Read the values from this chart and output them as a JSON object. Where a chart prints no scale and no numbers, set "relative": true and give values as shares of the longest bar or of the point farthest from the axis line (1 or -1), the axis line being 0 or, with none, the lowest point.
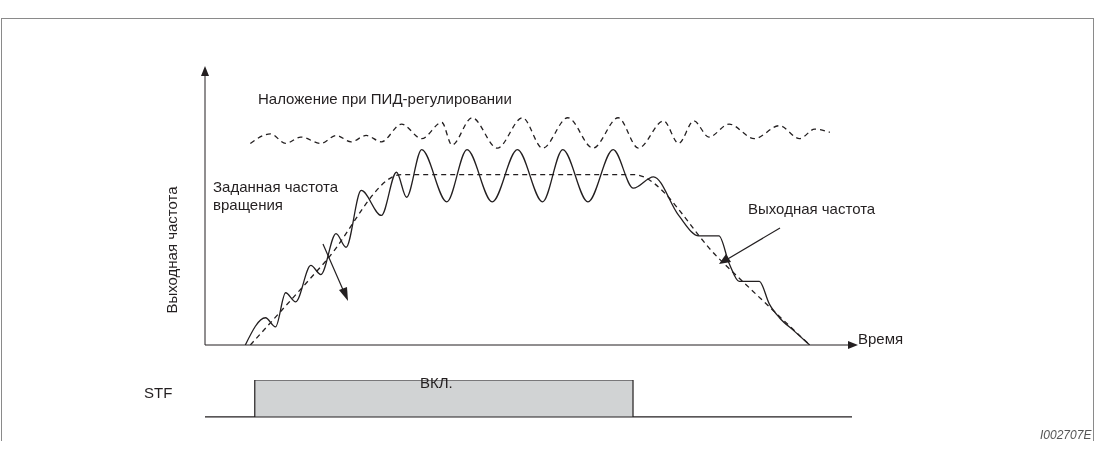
{
  "chart_data": [
    {
      "type": "line",
      "relative": true,
      "marker": "none",
      "xlabel": "Время",
      "ylabel": "Выходная частота",
      "categories": [
        null,
        null,
        null,
        null,
        null,
        null,
        null,
        null,
        null,
        null,
        null,
        null,
        null,
        null,
        null,
        null,
        null,
        null,
        null,
        null,
        null,
        null,
        null,
        null,
        null,
        null,
        null,
        null,
        null,
        null,
        null,
        null,
        null,
        null,
        null,
        null,
        null,
        null,
        null,
        null,
        null,
        null,
        null,
        null,
        null,
        null,
        null,
        null,
        null,
        null,
        null,
        null,
        null,
        null,
        null,
        null,
        null,
        null,
        null,
        null,
        null,
        null,
        null,
        null,
        null,
        null,
        null,
        null,
        null,
        null,
        null,
        null,
        null,
        null,
        null,
        null,
        null,
        null,
        null,
        null,
        null,
        null,
        null,
        null,
        null,
        null,
        null,
        null,
        null,
        null,
        null,
        null,
        null,
        null,
        null,
        null,
        null,
        null,
        null,
        null,
        null,
        null,
        null,
        null,
        null,
        null,
        null,
        null,
        null,
        null,
        null,
        null,
        null,
        null,
        null,
        null,
        null,
        null,
        null,
        null,
        null,
        null,
        null,
        null,
        null,
        null,
        null,
        null,
        null
      ],
      "series": [
        {
          "name": "Наложение при ПИД-регулировании",
          "color": "#231f20",
          "line_style": "dashed",
          "values": [
            null,
            null,
            null,
            null,
            null,
            null,
            null,
            null,
            null,
            0.887,
            null,
            null,
            null,
            0.929,
            null,
            null,
            0.887,
            null,
            null,
            0.915,
            null,
            null,
            null,
            0.887,
            null,
            null,
            0.922,
            null,
            null,
            0.894,
            null,
            null,
            0.922,
            null,
            null,
            0.894,
            null,
            null,
            null,
            0.972,
            null,
            null,
            null,
            0.908,
            null,
            null,
            null,
            0.979,
            null,
            0.88,
            null,
            null,
            null,
            1,
            null,
            null,
            null,
            null,
            0.866,
            null,
            null,
            null,
            null,
            1,
            null,
            null,
            null,
            0.866,
            null,
            null,
            null,
            null,
            1,
            null,
            null,
            null,
            null,
            0.866,
            null,
            null,
            null,
            null,
            1,
            null,
            null,
            null,
            0.866,
            null,
            null,
            null,
            null,
            0.986,
            null,
            null,
            0.887,
            null,
            null,
            0.986,
            null,
            null,
            0.915,
            null,
            null,
            null,
            0.972,
            null,
            null,
            null,
            null,
            0.908,
            null,
            null,
            null,
            null,
            0.965,
            null,
            null,
            null,
            0.908,
            null,
            null,
            0.95,
            null,
            null,
            0.936,
            null,
            null,
            null,
            null
          ]
        },
        {
          "name": "Заданная частота вращения",
          "color": "#231f20",
          "line_style": "dashed",
          "values": [
            null,
            null,
            null,
            null,
            null,
            null,
            null,
            null,
            null,
            0,
            null,
            null,
            null,
            null,
            null,
            null,
            null,
            null,
            null,
            null,
            null,
            null,
            null,
            null,
            0.37,
            null,
            null,
            null,
            null,
            null,
            null,
            null,
            null,
            null,
            null,
            null,
            null,
            null,
            null,
            0.75,
            null,
            null,
            null,
            null,
            null,
            null,
            null,
            null,
            null,
            null,
            null,
            null,
            null,
            null,
            null,
            null,
            null,
            null,
            null,
            null,
            null,
            null,
            null,
            null,
            null,
            null,
            null,
            null,
            null,
            null,
            null,
            null,
            null,
            null,
            null,
            null,
            null,
            null,
            null,
            null,
            null,
            null,
            null,
            null,
            null,
            0.75,
            null,
            null,
            null,
            null,
            null,
            null,
            null,
            null,
            null,
            null,
            null,
            null,
            null,
            null,
            null,
            null,
            0.38,
            null,
            null,
            null,
            null,
            null,
            null,
            null,
            null,
            null,
            null,
            null,
            null,
            null,
            null,
            null,
            null,
            null,
            0,
            null,
            null,
            null,
            null,
            null,
            null,
            null,
            null
          ]
        },
        {
          "name": "Выходная частота",
          "color": "#231f20",
          "line_style": "solid",
          "values": [
            null,
            null,
            null,
            null,
            null,
            null,
            null,
            null,
            0,
            null,
            null,
            null,
            0.12,
            null,
            0.08,
            null,
            0.23,
            null,
            0.19,
            null,
            null,
            0.35,
            null,
            0.31,
            null,
            null,
            0.49,
            null,
            0.43,
            null,
            null,
            0.68,
            null,
            null,
            null,
            0.57,
            null,
            null,
            0.76,
            null,
            0.65,
            null,
            null,
            0.86,
            null,
            null,
            null,
            null,
            0.63,
            null,
            null,
            null,
            0.86,
            null,
            null,
            null,
            null,
            0.63,
            null,
            null,
            null,
            null,
            0.86,
            null,
            null,
            null,
            null,
            0.63,
            null,
            null,
            null,
            0.86,
            null,
            null,
            null,
            null,
            0.63,
            null,
            null,
            null,
            null,
            0.86,
            null,
            null,
            null,
            0.69,
            null,
            null,
            null,
            0.74,
            null,
            null,
            null,
            null,
            0.57,
            null,
            null,
            null,
            0.48,
            null,
            null,
            null,
            0.48,
            null,
            0.36,
            null,
            0.28,
            null,
            null,
            null,
            0.28,
            null,
            0.18,
            null,
            0.12,
            null,
            null,
            0.06,
            null,
            null,
            0,
            null,
            null,
            null,
            null,
            null,
            null,
            null,
            null
          ]
        }
      ]
    },
    {
      "type": "area",
      "relative": true,
      "marker": "none",
      "annotations": [
        "ВКЛ.",
        "I002707E"
      ],
      "categories": [
        null,
        null,
        null,
        null,
        null,
        null,
        null,
        null,
        null,
        null,
        null,
        null,
        null,
        null,
        null,
        null,
        null,
        null,
        null,
        null,
        null,
        null,
        null,
        null,
        null,
        null,
        null,
        null,
        null,
        null,
        null,
        null,
        null,
        null,
        null,
        null,
        null,
        null,
        null,
        null,
        null,
        null,
        null,
        null,
        null,
        null,
        null,
        null,
        null,
        null,
        null,
        null,
        null,
        null,
        null,
        null,
        null,
        null,
        null,
        null,
        null,
        null,
        null,
        null,
        null,
        null
      ],
      "series": [
        {
          "name": "STF",
          "color": "#d1d3d4",
          "values": [
            0,
            0,
            0,
            0,
            0,
            1,
            1,
            1,
            1,
            1,
            1,
            1,
            1,
            1,
            1,
            1,
            1,
            1,
            1,
            1,
            1,
            1,
            1,
            1,
            1,
            1,
            1,
            1,
            1,
            1,
            1,
            1,
            1,
            1,
            1,
            1,
            1,
            1,
            1,
            1,
            1,
            1,
            1,
            0,
            0,
            0,
            0,
            0,
            0,
            0,
            0,
            0,
            0,
            0,
            0,
            0,
            0,
            0,
            0,
            0,
            0,
            0,
            0,
            0,
            0,
            0
          ]
        }
      ]
    }
  ]
}
